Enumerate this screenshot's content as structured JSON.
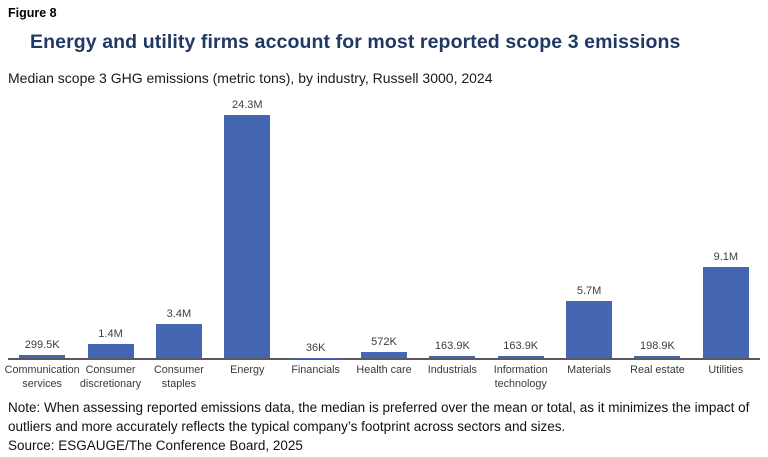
{
  "figure_label": "Figure 8",
  "title": "Energy and utility firms account for most reported scope 3 emissions",
  "subtitle": "Median scope 3 GHG emissions (metric tons), by industry, Russell 3000, 2024",
  "note": "Note: When assessing reported emissions data, the median is preferred over the mean or total, as it minimizes the impact of outliers and more accurately reflects the typical company’s footprint across sectors and sizes.",
  "source": "Source: ESGAUGE/The Conference Board, 2025",
  "colors": {
    "bar": "#4566B1",
    "title": "#1F3864",
    "axis": "#58595b",
    "label": "#3d3d3d"
  },
  "chart_data": {
    "type": "bar",
    "title": "Energy and utility firms account for most reported scope 3 emissions",
    "subtitle": "Median scope 3 GHG emissions (metric tons), by industry, Russell 3000, 2024",
    "categories": [
      "Communication services",
      "Consumer discretionary",
      "Consumer staples",
      "Energy",
      "Financials",
      "Health care",
      "Industrials",
      "Information technology",
      "Materials",
      "Real estate",
      "Utilities"
    ],
    "values": [
      299500,
      1400000,
      3400000,
      24300000,
      36000,
      572000,
      163900,
      163900,
      5700000,
      198900,
      9100000
    ],
    "value_labels": [
      "299.5K",
      "1.4M",
      "3.4M",
      "24.3M",
      "36K",
      "572K",
      "163.9K",
      "163.9K",
      "5.7M",
      "198.9K",
      "9.1M"
    ],
    "xlabel": "",
    "ylabel": "",
    "ylim": [
      0,
      24300000
    ],
    "grid": false,
    "legend": false,
    "bar_color": "#4566B1"
  }
}
